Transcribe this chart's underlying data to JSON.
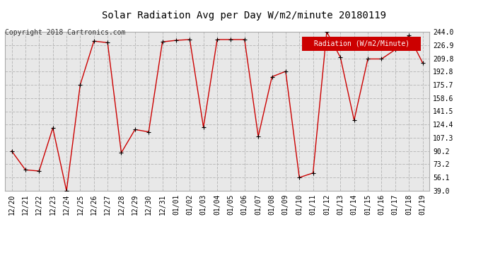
{
  "title": "Solar Radiation Avg per Day W/m2/minute 20180119",
  "copyright": "Copyright 2018 Cartronics.com",
  "legend_label": "Radiation (W/m2/Minute)",
  "legend_bg": "#cc0000",
  "legend_text_color": "#ffffff",
  "x_labels": [
    "12/20",
    "12/21",
    "12/22",
    "12/23",
    "12/24",
    "12/25",
    "12/26",
    "12/27",
    "12/28",
    "12/29",
    "12/30",
    "12/31",
    "01/01",
    "01/02",
    "01/03",
    "01/04",
    "01/05",
    "01/06",
    "01/07",
    "01/08",
    "01/09",
    "01/10",
    "01/11",
    "01/12",
    "01/13",
    "01/14",
    "01/15",
    "01/16",
    "01/17",
    "01/18",
    "01/19"
  ],
  "y_values": [
    90.2,
    66.0,
    64.5,
    120.0,
    39.0,
    175.7,
    232.0,
    230.0,
    88.0,
    118.0,
    115.0,
    231.0,
    233.0,
    234.0,
    121.0,
    234.0,
    234.0,
    234.0,
    109.0,
    186.0,
    193.0,
    56.1,
    62.0,
    244.0,
    211.0,
    130.0,
    209.0,
    209.0,
    221.0,
    239.0,
    204.0
  ],
  "y_ticks": [
    39.0,
    56.1,
    73.2,
    90.2,
    107.3,
    124.4,
    141.5,
    158.6,
    175.7,
    192.8,
    209.8,
    226.9,
    244.0
  ],
  "y_min": 39.0,
  "y_max": 244.0,
  "line_color": "#cc0000",
  "marker_color": "#000000",
  "bg_color": "#ffffff",
  "plot_bg_color": "#e8e8e8",
  "grid_color": "#bbbbbb",
  "title_fontsize": 10,
  "tick_fontsize": 7,
  "copyright_fontsize": 7,
  "legend_fontsize": 7
}
